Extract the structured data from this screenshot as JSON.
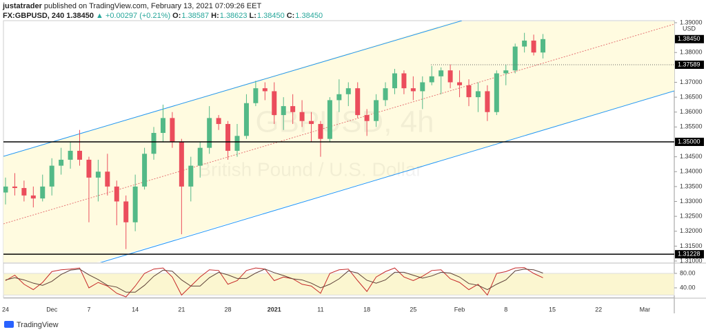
{
  "header": {
    "author": "justatrader",
    "published": "published on TradingView.com, February 13, 2021 07:09:26 EET",
    "symbol": "FX:GBPUSD, 240",
    "last": "1.38450",
    "change": "▲ +0.00297 (+0.21%)",
    "ohlc": [
      {
        "key": "O:",
        "value": "1.38587"
      },
      {
        "key": "H:",
        "value": "1.38623"
      },
      {
        "key": "L:",
        "value": "1.38450"
      },
      {
        "key": "C:",
        "value": "1.38450"
      }
    ],
    "logo": "TradingView"
  },
  "chart_data": [
    {
      "type": "candlestick",
      "currency": "USD",
      "watermark": [
        "GBPUSD, 4h",
        "British Pound / U.S. Dollar"
      ],
      "up_color": "#53b987",
      "down_color": "#eb4d5c",
      "categories": [
        "24",
        null,
        null,
        null,
        null,
        "Dec",
        null,
        null,
        null,
        "7",
        null,
        null,
        null,
        null,
        "14",
        null,
        null,
        null,
        null,
        "21",
        null,
        null,
        null,
        null,
        "28",
        null,
        null,
        null,
        null,
        "2021",
        null,
        null,
        null,
        null,
        "11",
        null,
        null,
        null,
        null,
        "18",
        null,
        null,
        null,
        null,
        "25",
        null,
        null,
        null,
        null,
        "Feb",
        null,
        null,
        null,
        null,
        "8",
        null,
        null,
        null,
        null,
        "15",
        null,
        null,
        null,
        null,
        "22",
        null,
        null,
        null,
        null,
        "Mar",
        null,
        null
      ],
      "ohlc": [
        [
          1.333,
          1.338,
          1.329,
          1.335
        ],
        [
          1.335,
          1.3395,
          1.332,
          1.3345
        ],
        [
          1.3345,
          1.337,
          1.33,
          1.332
        ],
        [
          1.332,
          1.335,
          1.328,
          1.331
        ],
        [
          1.331,
          1.339,
          1.33,
          1.335
        ],
        [
          1.335,
          1.3445,
          1.332,
          1.342
        ],
        [
          1.342,
          1.348,
          1.339,
          1.344
        ],
        [
          1.344,
          1.35,
          1.341,
          1.347
        ],
        [
          1.347,
          1.354,
          1.342,
          1.344
        ],
        [
          1.344,
          1.345,
          1.323,
          1.338
        ],
        [
          1.338,
          1.344,
          1.33,
          1.34
        ],
        [
          1.34,
          1.346,
          1.332,
          1.335
        ],
        [
          1.335,
          1.337,
          1.322,
          1.33
        ],
        [
          1.33,
          1.332,
          1.314,
          1.323
        ],
        [
          1.323,
          1.339,
          1.32,
          1.335
        ],
        [
          1.335,
          1.348,
          1.334,
          1.346
        ],
        [
          1.346,
          1.355,
          1.344,
          1.353
        ],
        [
          1.353,
          1.3625,
          1.35,
          1.358
        ],
        [
          1.358,
          1.36,
          1.348,
          1.35
        ],
        [
          1.35,
          1.351,
          1.319,
          1.335
        ],
        [
          1.335,
          1.345,
          1.33,
          1.342
        ],
        [
          1.342,
          1.35,
          1.338,
          1.348
        ],
        [
          1.348,
          1.362,
          1.346,
          1.358
        ],
        [
          1.358,
          1.359,
          1.354,
          1.356
        ],
        [
          1.356,
          1.357,
          1.344,
          1.347
        ],
        [
          1.347,
          1.356,
          1.345,
          1.352
        ],
        [
          1.352,
          1.366,
          1.351,
          1.363
        ],
        [
          1.363,
          1.3705,
          1.362,
          1.368
        ],
        [
          1.368,
          1.37,
          1.364,
          1.367
        ],
        [
          1.367,
          1.37,
          1.356,
          1.359
        ],
        [
          1.359,
          1.365,
          1.354,
          1.362
        ],
        [
          1.362,
          1.366,
          1.356,
          1.36
        ],
        [
          1.36,
          1.364,
          1.355,
          1.357
        ],
        [
          1.357,
          1.36,
          1.35,
          1.356
        ],
        [
          1.356,
          1.357,
          1.345,
          1.351
        ],
        [
          1.351,
          1.365,
          1.35,
          1.364
        ],
        [
          1.364,
          1.371,
          1.36,
          1.366
        ],
        [
          1.366,
          1.37,
          1.362,
          1.368
        ],
        [
          1.368,
          1.37,
          1.358,
          1.359
        ],
        [
          1.359,
          1.361,
          1.352,
          1.357
        ],
        [
          1.357,
          1.366,
          1.355,
          1.364
        ],
        [
          1.364,
          1.37,
          1.362,
          1.368
        ],
        [
          1.368,
          1.3745,
          1.366,
          1.373
        ],
        [
          1.373,
          1.374,
          1.366,
          1.368
        ],
        [
          1.368,
          1.372,
          1.364,
          1.367
        ],
        [
          1.367,
          1.372,
          1.361,
          1.37
        ],
        [
          1.37,
          1.3755,
          1.369,
          1.372
        ],
        [
          1.372,
          1.375,
          1.366,
          1.374
        ],
        [
          1.374,
          1.376,
          1.368,
          1.37
        ],
        [
          1.37,
          1.374,
          1.365,
          1.369
        ],
        [
          1.369,
          1.371,
          1.362,
          1.365
        ],
        [
          1.365,
          1.37,
          1.36,
          1.367
        ],
        [
          1.367,
          1.369,
          1.357,
          1.36
        ],
        [
          1.36,
          1.374,
          1.359,
          1.373
        ],
        [
          1.373,
          1.376,
          1.369,
          1.374
        ],
        [
          1.374,
          1.383,
          1.373,
          1.382
        ],
        [
          1.382,
          1.3866,
          1.38,
          1.384
        ],
        [
          1.384,
          1.386,
          1.379,
          1.38
        ],
        [
          1.38,
          1.3862,
          1.378,
          1.3845
        ],
        null,
        null,
        null,
        null,
        null,
        null,
        null,
        null,
        null,
        null,
        null,
        null,
        null
      ],
      "ylim": [
        1.30954,
        1.39069
      ],
      "yticks": [
        {
          "value": 1.39,
          "label": "1.39000"
        },
        {
          "value": 1.38,
          "label": "1.38000"
        },
        {
          "value": 1.37,
          "label": "1.37000"
        },
        {
          "value": 1.365,
          "label": "1.36500"
        },
        {
          "value": 1.36,
          "label": "1.36000"
        },
        {
          "value": 1.355,
          "label": "1.35500"
        },
        {
          "value": 1.345,
          "label": "1.34500"
        },
        {
          "value": 1.34,
          "label": "1.34000"
        },
        {
          "value": 1.335,
          "label": "1.33500"
        },
        {
          "value": 1.33,
          "label": "1.33000"
        },
        {
          "value": 1.325,
          "label": "1.32500"
        },
        {
          "value": 1.32,
          "label": "1.32000"
        },
        {
          "value": 1.315,
          "label": "1.31500"
        },
        {
          "value": 1.31,
          "label": "1.31000"
        }
      ],
      "price_labels": [
        {
          "value": 1.3845,
          "label": "1.38450",
          "line": "none"
        },
        {
          "value": 1.37589,
          "label": "1.37589",
          "line": "dotted"
        },
        {
          "value": 1.35,
          "label": "1.35000",
          "line": "solid"
        },
        {
          "value": 1.31228,
          "label": "1.31228",
          "line": "solid"
        }
      ]
    },
    {
      "type": "line",
      "band": [
        20,
        80
      ],
      "band_color": "#fbf6d0",
      "series": [
        {
          "color": "#c62828",
          "values": [
            60,
            75,
            50,
            35,
            55,
            85,
            90,
            92,
            95,
            40,
            55,
            45,
            25,
            15,
            45,
            80,
            92,
            95,
            70,
            20,
            45,
            70,
            90,
            88,
            50,
            60,
            88,
            95,
            92,
            60,
            70,
            65,
            50,
            45,
            25,
            80,
            90,
            92,
            60,
            30,
            70,
            85,
            95,
            70,
            60,
            72,
            88,
            90,
            65,
            55,
            35,
            50,
            20,
            80,
            85,
            95,
            96,
            80,
            68,
            null,
            null,
            null,
            null,
            null,
            null,
            null,
            null,
            null,
            null,
            null,
            null,
            null
          ]
        },
        {
          "color": "#5d4037",
          "values": [
            62,
            68,
            62,
            53,
            47,
            58,
            77,
            89,
            92,
            76,
            63,
            47,
            42,
            28,
            28,
            47,
            72,
            89,
            86,
            62,
            45,
            45,
            68,
            83,
            76,
            66,
            66,
            81,
            92,
            82,
            74,
            65,
            62,
            53,
            40,
            50,
            65,
            87,
            81,
            61,
            53,
            62,
            83,
            83,
            75,
            67,
            73,
            83,
            81,
            70,
            52,
            47,
            35,
            50,
            62,
            87,
            92,
            90,
            81,
            null,
            null,
            null,
            null,
            null,
            null,
            null,
            null,
            null,
            null,
            null,
            null,
            null
          ]
        }
      ],
      "ylim": [
        13.3,
        106.7
      ],
      "yticks": [
        {
          "value": 80,
          "label": "80.00"
        },
        {
          "value": 40,
          "label": "40.00"
        }
      ]
    }
  ]
}
